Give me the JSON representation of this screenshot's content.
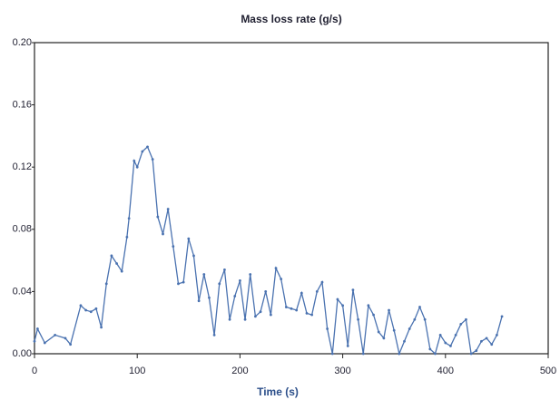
{
  "chart_data": {
    "type": "line",
    "title": "Mass loss rate (g/s)",
    "xlabel": "Time (s)",
    "x": [
      0,
      3,
      10,
      20,
      30,
      35,
      45,
      50,
      55,
      60,
      65,
      70,
      75,
      80,
      85,
      90,
      92,
      97,
      100,
      105,
      110,
      115,
      120,
      125,
      130,
      135,
      140,
      145,
      150,
      155,
      160,
      165,
      170,
      175,
      180,
      185,
      190,
      195,
      200,
      205,
      210,
      215,
      220,
      225,
      230,
      235,
      240,
      245,
      250,
      255,
      260,
      265,
      270,
      275,
      280,
      285,
      290,
      295,
      300,
      305,
      310,
      315,
      320,
      325,
      330,
      335,
      340,
      345,
      350,
      355,
      360,
      365,
      370,
      375,
      380,
      385,
      390,
      395,
      400,
      405,
      410,
      415,
      420,
      425,
      430,
      435,
      440,
      445,
      450,
      455
    ],
    "series": [
      {
        "name": "Mass loss rate",
        "color": "#4a72b0",
        "values": [
          0.008,
          0.016,
          0.007,
          0.012,
          0.01,
          0.006,
          0.031,
          0.028,
          0.027,
          0.029,
          0.017,
          0.045,
          0.063,
          0.058,
          0.053,
          0.075,
          0.087,
          0.124,
          0.12,
          0.13,
          0.133,
          0.125,
          0.088,
          0.077,
          0.093,
          0.069,
          0.045,
          0.046,
          0.074,
          0.063,
          0.034,
          0.051,
          0.036,
          0.012,
          0.045,
          0.054,
          0.022,
          0.037,
          0.047,
          0.022,
          0.051,
          0.024,
          0.027,
          0.04,
          0.025,
          0.055,
          0.048,
          0.03,
          0.029,
          0.028,
          0.039,
          0.026,
          0.025,
          0.04,
          0.046,
          0.016,
          0.0,
          0.035,
          0.031,
          0.005,
          0.041,
          0.022,
          0.0,
          0.031,
          0.025,
          0.014,
          0.01,
          0.028,
          0.015,
          0.0,
          0.008,
          0.016,
          0.022,
          0.03,
          0.022,
          0.003,
          0.0,
          0.012,
          0.007,
          0.005,
          0.012,
          0.019,
          0.022,
          0.0,
          0.002,
          0.008,
          0.01,
          0.006,
          0.012,
          0.024
        ]
      }
    ],
    "xlim": [
      0,
      500
    ],
    "xticks": [
      0,
      100,
      200,
      300,
      400,
      500
    ],
    "ylim": [
      0,
      0.2
    ],
    "yticks": [
      {
        "value": 0,
        "label": "0.00"
      },
      {
        "value": 0.04,
        "label": "0.04"
      },
      {
        "value": 0.08,
        "label": "0.08"
      },
      {
        "value": 0.12,
        "label": "0.12"
      },
      {
        "value": 0.16,
        "label": "0.16"
      },
      {
        "value": 0.2,
        "label": "0.20"
      }
    ],
    "grid": false
  }
}
